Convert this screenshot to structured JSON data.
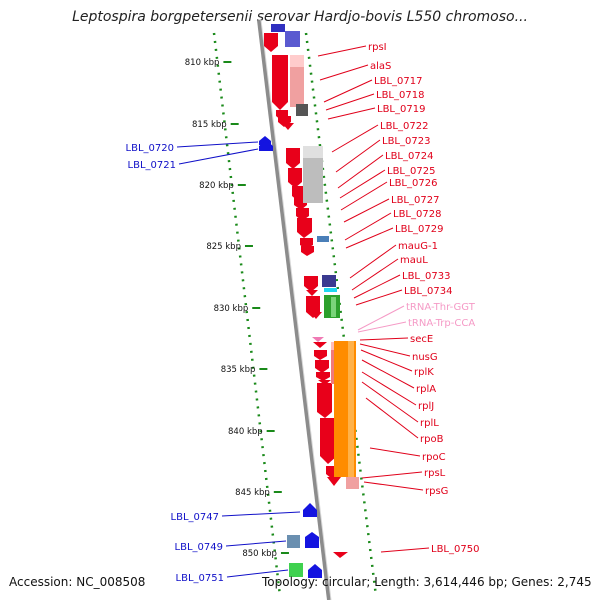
{
  "title": "Leptospira borgpetersenii serovar Hardjo-bovis L550 chromoso...",
  "footer": {
    "accession": "Accession: NC_008508",
    "summary": "Topology: circular; Length: 3,614,446 bp; Genes: 2,745"
  },
  "colors": {
    "backbone": "#8c8c8c",
    "tick": "#1a8a1a",
    "right_label": "#e0001a",
    "rna_label": "#f59ac6",
    "left_label": "#1010c8"
  },
  "scale_ticks": [
    "810 kbp",
    "815 kbp",
    "820 kbp",
    "825 kbp",
    "830 kbp",
    "835 kbp",
    "840 kbp",
    "845 kbp",
    "850 kbp"
  ],
  "left_labels": [
    "LBL_0720",
    "LBL_0721",
    "LBL_0747",
    "LBL_0749",
    "LBL_0751"
  ],
  "right_labels": [
    {
      "text": "rpsI",
      "kind": "gene"
    },
    {
      "text": "alaS",
      "kind": "gene"
    },
    {
      "text": "LBL_0717",
      "kind": "gene"
    },
    {
      "text": "LBL_0718",
      "kind": "gene"
    },
    {
      "text": "LBL_0719",
      "kind": "gene"
    },
    {
      "text": "LBL_0722",
      "kind": "gene"
    },
    {
      "text": "LBL_0723",
      "kind": "gene"
    },
    {
      "text": "LBL_0724",
      "kind": "gene"
    },
    {
      "text": "LBL_0725",
      "kind": "gene"
    },
    {
      "text": "LBL_0726",
      "kind": "gene"
    },
    {
      "text": "LBL_0727",
      "kind": "gene"
    },
    {
      "text": "LBL_0728",
      "kind": "gene"
    },
    {
      "text": "LBL_0729",
      "kind": "gene"
    },
    {
      "text": "mauG-1",
      "kind": "gene"
    },
    {
      "text": "mauL",
      "kind": "gene"
    },
    {
      "text": "LBL_0733",
      "kind": "gene"
    },
    {
      "text": "LBL_0734",
      "kind": "gene"
    },
    {
      "text": "tRNA-Thr-GGT",
      "kind": "rna"
    },
    {
      "text": "tRNA-Trp-CCA",
      "kind": "rna"
    },
    {
      "text": "secE",
      "kind": "gene"
    },
    {
      "text": "nusG",
      "kind": "gene"
    },
    {
      "text": "rplK",
      "kind": "gene"
    },
    {
      "text": "rplA",
      "kind": "gene"
    },
    {
      "text": "rplJ",
      "kind": "gene"
    },
    {
      "text": "rplL",
      "kind": "gene"
    },
    {
      "text": "rpoB",
      "kind": "gene"
    },
    {
      "text": "rpoC",
      "kind": "gene"
    },
    {
      "text": "rpsL",
      "kind": "gene"
    },
    {
      "text": "rpsG",
      "kind": "gene"
    },
    {
      "text": "LBL_0750",
      "kind": "gene"
    }
  ]
}
